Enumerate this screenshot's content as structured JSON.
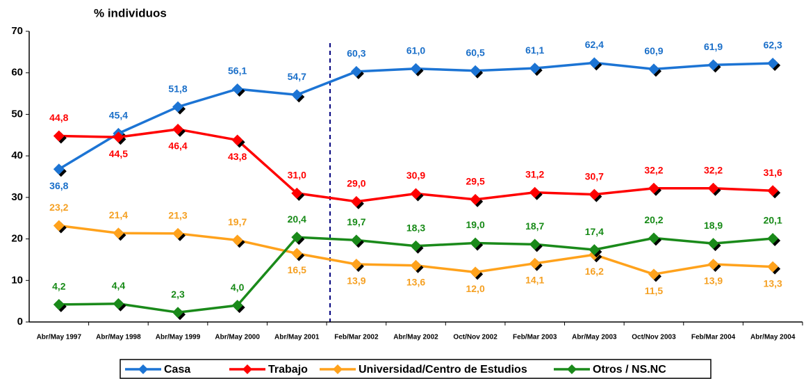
{
  "chart_data": {
    "type": "line",
    "y_axis_title": "% individuos",
    "categories": [
      "Abr/May 1997",
      "Abr/May 1998",
      "Abr/May 1999",
      "Abr/May 2000",
      "Abr/May 2001",
      "Feb/Mar 2002",
      "Abr/May 2002",
      "Oct/Nov 2002",
      "Feb/Mar 2003",
      "Abr/May 2003",
      "Oct/Nov 2003",
      "Feb/Mar 2004",
      "Abr/May 2004"
    ],
    "series": [
      {
        "name": "Casa",
        "color": "#1c74d4",
        "label_color": "#1a6fc9",
        "values": [
          36.8,
          45.4,
          51.8,
          56.1,
          54.7,
          60.3,
          61.0,
          60.5,
          61.1,
          62.4,
          60.9,
          61.9,
          62.3
        ],
        "value_labels": [
          "36,8",
          "45,4",
          "51,8",
          "56,1",
          "54,7",
          "60,3",
          "61,0",
          "60,5",
          "61,1",
          "62,4",
          "60,9",
          "61,9",
          "62,3"
        ]
      },
      {
        "name": "Trabajo",
        "color": "#ff0000",
        "label_color": "#ff0000",
        "values": [
          44.8,
          44.5,
          46.4,
          43.8,
          31.0,
          29.0,
          30.9,
          29.5,
          31.2,
          30.7,
          32.2,
          32.2,
          31.6
        ],
        "value_labels": [
          "44,8",
          "44,5",
          "46,4",
          "43,8",
          "31,0",
          "29,0",
          "30,9",
          "29,5",
          "31,2",
          "30,7",
          "32,2",
          "32,2",
          "31,6"
        ]
      },
      {
        "name": "Universidad/Centro de Estudios",
        "color": "#ffa21c",
        "label_color": "#f5a022",
        "values": [
          23.2,
          21.4,
          21.3,
          19.7,
          16.5,
          13.9,
          13.6,
          12.0,
          14.1,
          16.2,
          11.5,
          13.9,
          13.3
        ],
        "value_labels": [
          "23,2",
          "21,4",
          "21,3",
          "19,7",
          "16,5",
          "13,9",
          "13,6",
          "12,0",
          "14,1",
          "16,2",
          "11,5",
          "13,9",
          "13,3"
        ]
      },
      {
        "name": "Otros / NS.NC",
        "color": "#1a8a1a",
        "label_color": "#178a17",
        "values": [
          4.2,
          4.4,
          2.3,
          4.0,
          20.4,
          19.7,
          18.3,
          19.0,
          18.7,
          17.4,
          20.2,
          18.9,
          20.1
        ],
        "value_labels": [
          "4,2",
          "4,4",
          "2,3",
          "4,0",
          "20,4",
          "19,7",
          "18,3",
          "19,0",
          "18,7",
          "17,4",
          "20,2",
          "18,9",
          "20,1"
        ]
      }
    ],
    "ylim": [
      0,
      70
    ],
    "yticks": [
      0,
      10,
      20,
      30,
      40,
      50,
      60,
      70
    ],
    "grid": false,
    "legend": "bottom"
  }
}
